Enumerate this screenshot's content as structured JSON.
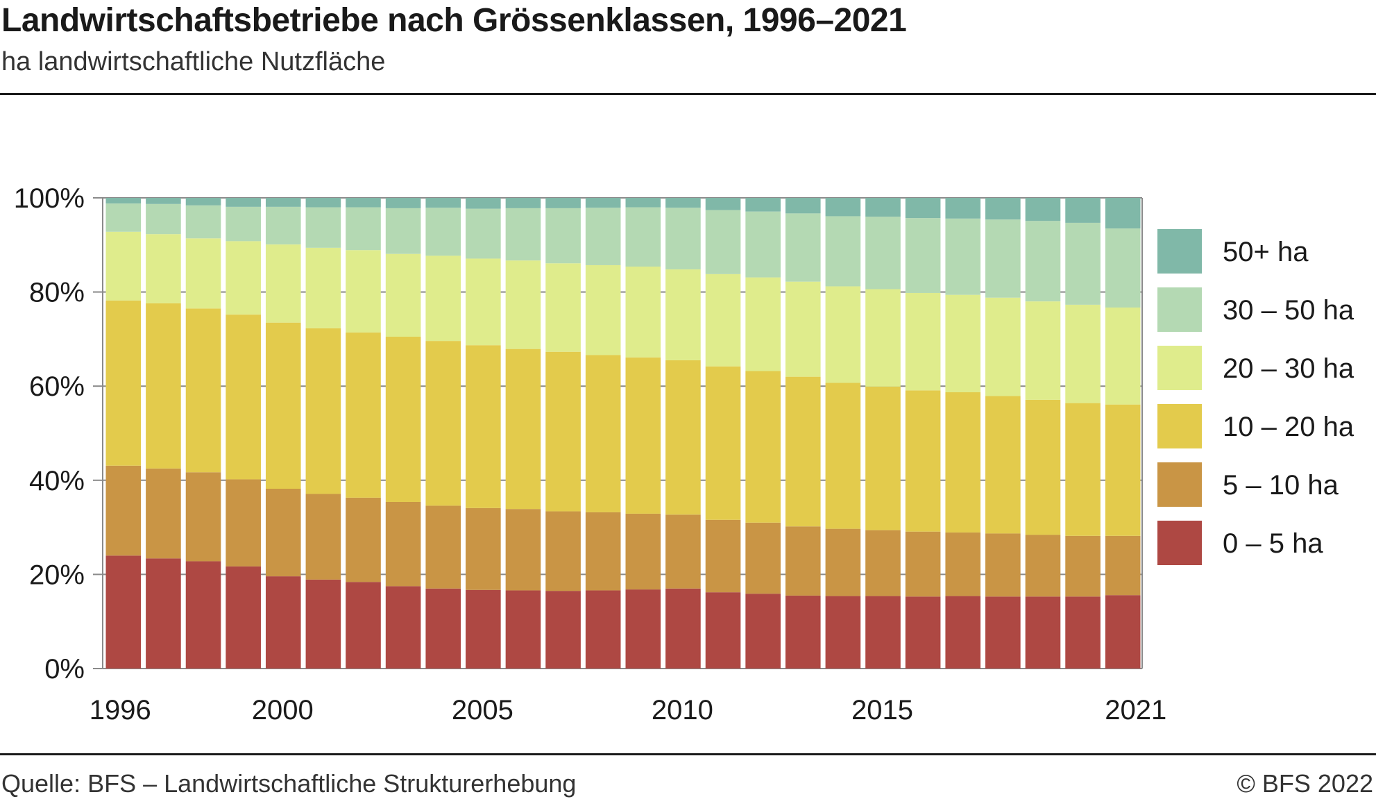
{
  "header": {
    "title": "Landwirtschaftsbetriebe nach Grössenklassen, 1996–2021",
    "subtitle": "ha landwirtschaftliche Nutzfläche"
  },
  "footer": {
    "source": "Quelle: BFS – Landwirtschaftliche Strukturerhebung",
    "copyright": "© BFS 2022"
  },
  "chart_data": {
    "type": "bar",
    "stacked": true,
    "title": "Landwirtschaftsbetriebe nach Grössenklassen, 1996–2021",
    "subtitle": "ha landwirtschaftliche Nutzfläche",
    "xlabel": "",
    "ylabel": "",
    "ylim": [
      0,
      100
    ],
    "y_ticks": [
      "0%",
      "20%",
      "40%",
      "60%",
      "80%",
      "100%"
    ],
    "x_tick_labels": [
      "1996",
      "2000",
      "2005",
      "2010",
      "2015",
      "2021"
    ],
    "grid": true,
    "legend_position": "right",
    "categories": [
      "1996",
      "1997",
      "1998",
      "1999",
      "2000",
      "2001",
      "2002",
      "2003",
      "2004",
      "2005",
      "2006",
      "2007",
      "2008",
      "2009",
      "2010",
      "2011",
      "2012",
      "2013",
      "2014",
      "2015",
      "2016",
      "2017",
      "2018",
      "2019",
      "2020",
      "2021"
    ],
    "series": [
      {
        "name": "0 – 5 ha",
        "color": "#ae4843",
        "values": [
          24.0,
          23.4,
          22.8,
          21.7,
          19.6,
          18.9,
          18.4,
          17.5,
          17.0,
          16.7,
          16.6,
          16.5,
          16.6,
          16.8,
          17.0,
          16.2,
          15.9,
          15.5,
          15.4,
          15.4,
          15.3,
          15.4,
          15.3,
          15.3,
          15.3,
          15.6
        ]
      },
      {
        "name": "5 – 10 ha",
        "color": "#c99545",
        "values": [
          19.1,
          19.1,
          18.9,
          18.5,
          18.6,
          18.2,
          17.9,
          17.9,
          17.6,
          17.4,
          17.3,
          16.9,
          16.6,
          16.1,
          15.7,
          15.4,
          15.1,
          14.7,
          14.3,
          14.0,
          13.8,
          13.5,
          13.4,
          13.1,
          12.9,
          12.6
        ]
      },
      {
        "name": "10 – 20 ha",
        "color": "#e3cb4c",
        "values": [
          35.1,
          35.1,
          34.8,
          35.0,
          35.3,
          35.2,
          35.1,
          35.1,
          35.0,
          34.6,
          34.0,
          33.9,
          33.4,
          33.2,
          32.8,
          32.6,
          32.2,
          31.8,
          31.0,
          30.5,
          30.0,
          29.8,
          29.2,
          28.7,
          28.2,
          27.9
        ]
      },
      {
        "name": "20 – 30 ha",
        "color": "#dfec8c",
        "values": [
          14.6,
          14.7,
          14.9,
          15.6,
          16.6,
          17.1,
          17.5,
          17.6,
          18.1,
          18.4,
          18.8,
          18.8,
          19.1,
          19.3,
          19.3,
          19.6,
          19.9,
          20.2,
          20.5,
          20.7,
          20.7,
          20.7,
          20.9,
          20.9,
          20.9,
          20.6
        ]
      },
      {
        "name": "30 – 50 ha",
        "color": "#b4d9b3",
        "values": [
          6.0,
          6.4,
          7.0,
          7.3,
          8.0,
          8.6,
          9.1,
          9.7,
          10.2,
          10.6,
          11.1,
          11.7,
          12.2,
          12.6,
          13.1,
          13.6,
          14.0,
          14.5,
          14.9,
          15.4,
          15.9,
          16.2,
          16.6,
          17.1,
          17.4,
          16.8
        ]
      },
      {
        "name": "50+ ha",
        "color": "#80b8a8",
        "values": [
          1.2,
          1.3,
          1.6,
          1.9,
          1.9,
          2.0,
          2.0,
          2.2,
          2.1,
          2.3,
          2.2,
          2.2,
          2.1,
          2.0,
          2.1,
          2.6,
          2.9,
          3.3,
          3.9,
          4.0,
          4.3,
          4.4,
          4.6,
          4.9,
          5.3,
          6.5
        ]
      }
    ]
  }
}
